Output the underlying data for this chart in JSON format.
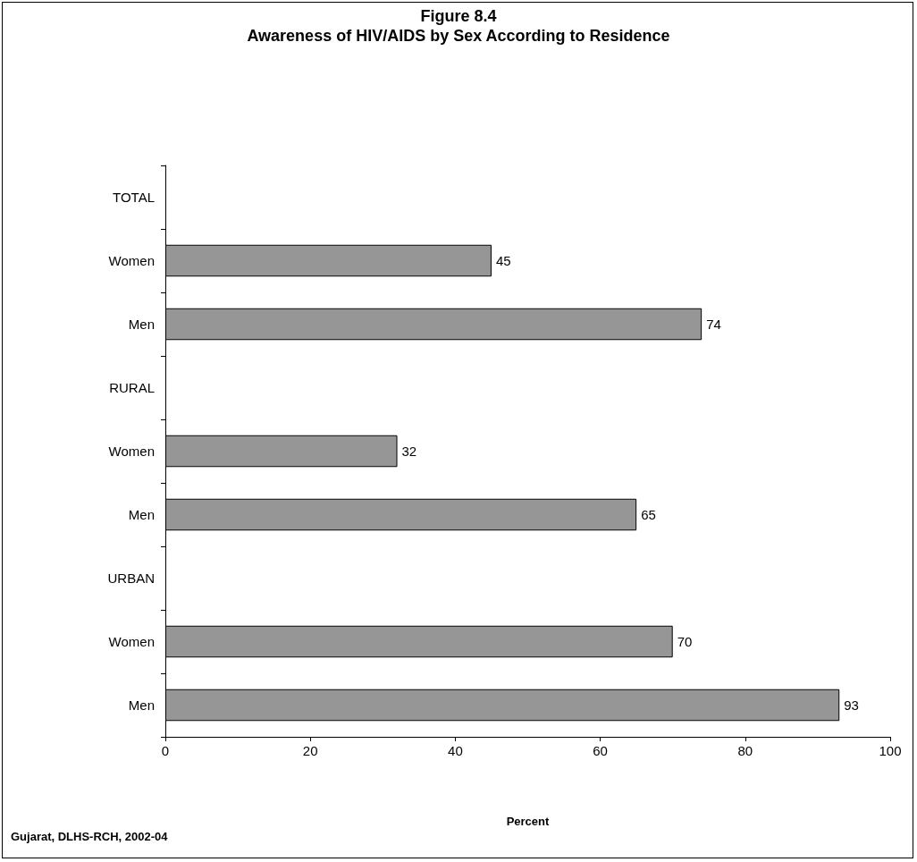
{
  "chart_data": {
    "type": "bar",
    "orientation": "horizontal",
    "title": "Figure 8.4",
    "subtitle": "Awareness of HIV/AIDS by Sex According to Residence",
    "categories": [
      "TOTAL",
      "Women",
      "Men",
      "RURAL",
      "Women",
      "Men",
      "URBAN",
      "Women",
      "Men"
    ],
    "values": [
      null,
      45,
      74,
      null,
      32,
      65,
      null,
      70,
      93
    ],
    "color": "#969696",
    "xlim": [
      0,
      100
    ],
    "xticks": [
      0,
      20,
      40,
      60,
      80,
      100
    ],
    "xlabel": "Percent",
    "annotations": [
      "Gujarat, DLHS-RCH, 2002-04"
    ],
    "data_labels": true,
    "grid": false
  }
}
